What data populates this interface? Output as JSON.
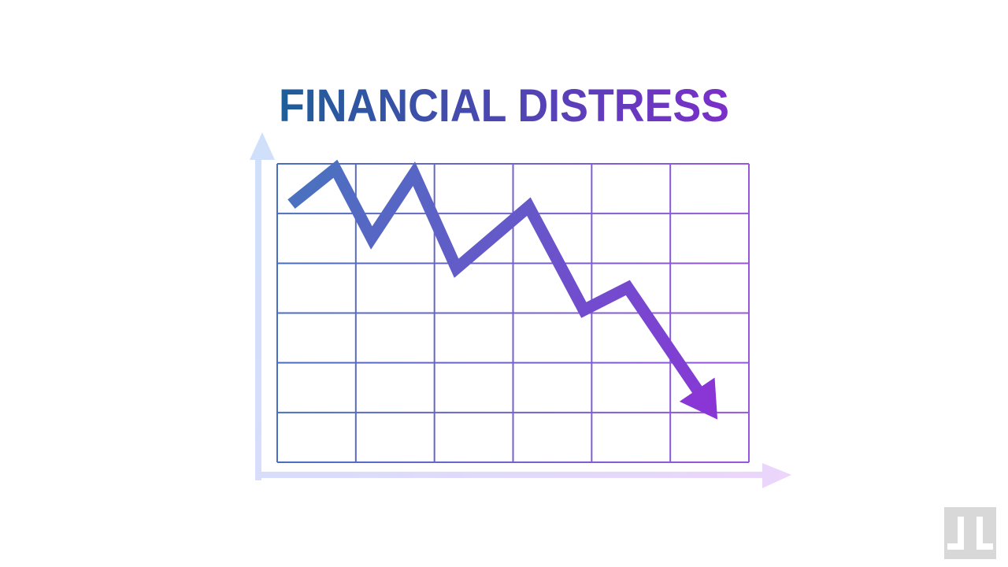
{
  "title": "FINANCIAL DISTRESS",
  "colors": {
    "title_start": "#1f5e9a",
    "title_end": "#7b2fc9",
    "grid_start": "#4a6fc0",
    "grid_end": "#9a55dd",
    "line_start": "#4a72bf",
    "line_end": "#8a35d6",
    "axis_start": "#cfe0fb",
    "axis_end": "#ecd6fb",
    "watermark": "#d8d8d8"
  },
  "chart_data": {
    "type": "line",
    "title": "",
    "xlabel": "",
    "ylabel": "",
    "grid": true,
    "grid_columns": 6,
    "grid_rows": 6,
    "xlim": [
      0,
      6
    ],
    "ylim": [
      0,
      6
    ],
    "series": [
      {
        "x": [
          0.18,
          0.74,
          1.2,
          1.74,
          2.28,
          3.2,
          3.9,
          4.46,
          5.6
        ],
        "y": [
          5.19,
          5.9,
          4.51,
          5.8,
          3.9,
          5.14,
          3.06,
          3.51,
          0.86
        ]
      }
    ],
    "end_marker": "arrow"
  }
}
